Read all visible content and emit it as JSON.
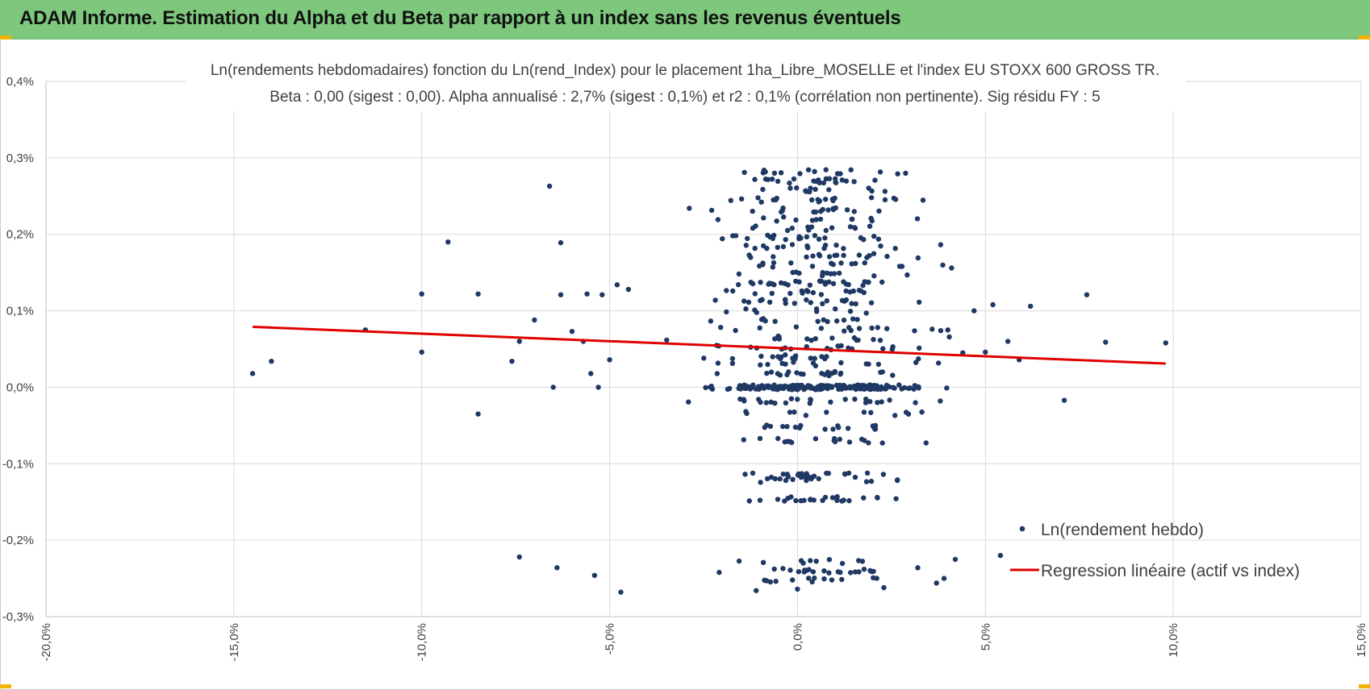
{
  "header": {
    "title": "ADAM Informe. Estimation du Alpha et du Beta par rapport à un index sans les revenus éventuels"
  },
  "colors": {
    "header_bg": "#7ec87e",
    "corner_accent": "#f0b400",
    "points": "#1f3864",
    "regression": "#e00000",
    "grid": "#d9d9d9"
  },
  "chart_data": {
    "type": "scatter",
    "title": "Ln(rendements hebdomadaires) fonction du Ln(rend_Index) pour le placement 1ha_Libre_MOSELLE et l'index EU STOXX 600 GROSS TR.",
    "subtitle": "Beta : 0,00 (sigest : 0,00). Alpha annualisé : 2,7% (sigest : 0,1%) et r2 : 0,1% (corrélation non pertinente). Sig résidu FY : 5",
    "xlabel": "",
    "ylabel": "",
    "xlim": [
      -20,
      15
    ],
    "ylim": [
      -0.3,
      0.4
    ],
    "x_ticks": [
      -20,
      -15,
      -10,
      -5,
      0,
      5,
      10,
      15
    ],
    "x_tick_labels": [
      "-20,0%",
      "-15,0%",
      "-10,0%",
      "-5,0%",
      "0,0%",
      "5,0%",
      "10,0%",
      "15,0%"
    ],
    "y_ticks": [
      0.4,
      0.3,
      0.2,
      0.1,
      0.0,
      -0.1,
      -0.2,
      -0.3
    ],
    "y_tick_labels": [
      "0,4%",
      "0,3%",
      "0,2%",
      "0,1%",
      "0,0%",
      "-0,1%",
      "-0,2%",
      "-0,3%"
    ],
    "grid": true,
    "legend_position": "bottom-right",
    "series": [
      {
        "name": "Ln(rendement hebdo)",
        "kind": "points",
        "outlier_points": [
          [
            -14.5,
            0.018
          ],
          [
            -14.0,
            0.034
          ],
          [
            -11.5,
            0.075
          ],
          [
            -10.0,
            0.122
          ],
          [
            -10.0,
            0.046
          ],
          [
            -9.3,
            0.19
          ],
          [
            -8.5,
            0.122
          ],
          [
            -8.5,
            -0.035
          ],
          [
            -7.6,
            0.034
          ],
          [
            -7.4,
            0.06
          ],
          [
            -7.0,
            0.088
          ],
          [
            -6.6,
            0.263
          ],
          [
            -6.3,
            0.189
          ],
          [
            -6.5,
            0.0
          ],
          [
            -6.0,
            0.073
          ],
          [
            -5.7,
            0.06
          ],
          [
            -5.5,
            0.018
          ],
          [
            -5.3,
            0.0
          ],
          [
            -5.0,
            0.036
          ],
          [
            -7.4,
            -0.222
          ],
          [
            -6.4,
            -0.236
          ],
          [
            -5.4,
            -0.246
          ],
          [
            -4.7,
            -0.268
          ],
          [
            -6.3,
            0.121
          ],
          [
            -5.6,
            0.122
          ],
          [
            -5.2,
            0.121
          ],
          [
            -4.8,
            0.134
          ],
          [
            -4.5,
            0.128
          ],
          [
            5.2,
            0.108
          ],
          [
            5.6,
            0.06
          ],
          [
            5.9,
            0.036
          ],
          [
            6.2,
            0.106
          ],
          [
            7.1,
            -0.017
          ],
          [
            7.7,
            0.121
          ],
          [
            8.2,
            0.059
          ],
          [
            9.8,
            0.058
          ],
          [
            5.4,
            -0.22
          ],
          [
            4.2,
            -0.225
          ],
          [
            3.9,
            -0.25
          ],
          [
            3.7,
            -0.256
          ],
          [
            3.2,
            -0.236
          ],
          [
            2.3,
            -0.262
          ],
          [
            -1.1,
            -0.266
          ],
          [
            0.0,
            -0.264
          ],
          [
            4.7,
            0.1
          ],
          [
            4.4,
            0.045
          ],
          [
            4.1,
            0.156
          ],
          [
            5.0,
            0.046
          ],
          [
            3.8,
            -0.018
          ],
          [
            4.0,
            0.075
          ]
        ],
        "cluster": {
          "x_range": [
            -4.6,
            4.4
          ],
          "x_center": 0.5,
          "levels": [
            0.282,
            0.27,
            0.258,
            0.245,
            0.232,
            0.22,
            0.208,
            0.196,
            0.184,
            0.172,
            0.16,
            0.148,
            0.136,
            0.124,
            0.112,
            0.1,
            0.088,
            0.076,
            0.064,
            0.052,
            0.04,
            0.03,
            0.018,
            0.0,
            -0.018,
            -0.034,
            -0.052,
            -0.07,
            -0.115,
            -0.122,
            -0.146,
            -0.228,
            -0.24,
            -0.252
          ],
          "count": 760
        }
      },
      {
        "name": "Regression linéaire (actif vs index)",
        "kind": "line",
        "x": [
          -14.5,
          9.8
        ],
        "y": [
          0.079,
          0.031
        ]
      }
    ]
  },
  "legend": {
    "points_label": "Ln(rendement hebdo)",
    "line_label": "Regression linéaire (actif vs index)"
  }
}
